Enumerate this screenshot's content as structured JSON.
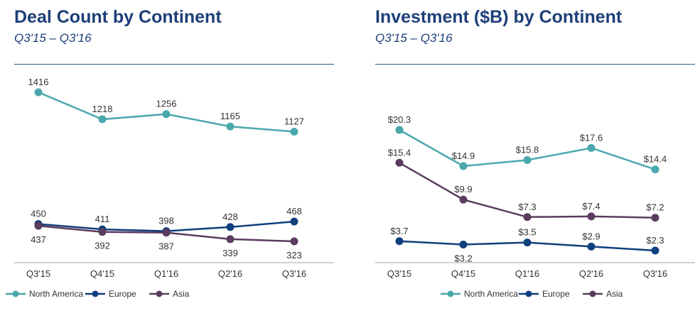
{
  "colors": {
    "north_america": "#4aa8ad",
    "europe": "#0f3f7c",
    "asia": "#5a3c5e",
    "title": "#1e3f78"
  },
  "chart_data": [
    {
      "type": "line",
      "title": "Deal Count by Continent",
      "subtitle": "Q3'15 – Q3'16",
      "categories": [
        "Q3'15",
        "Q4'15",
        "Q1'16",
        "Q2'16",
        "Q3'16"
      ],
      "legend_position": "bottom",
      "grid": false,
      "series": [
        {
          "name": "North America",
          "color": "#4aa8ad",
          "values": [
            1416,
            1218,
            1256,
            1165,
            1127
          ],
          "labels": [
            "1416",
            "1218",
            "1256",
            "1165",
            "1127"
          ],
          "label_pos": [
            "above",
            "above",
            "above",
            "above",
            "above"
          ]
        },
        {
          "name": "Europe",
          "color": "#0f3f7c",
          "values": [
            450,
            411,
            398,
            428,
            468
          ],
          "labels": [
            "450",
            "411",
            "398",
            "428",
            "468"
          ],
          "label_pos": [
            "above",
            "above",
            "above",
            "above",
            "above"
          ]
        },
        {
          "name": "Asia",
          "color": "#5a3c5e",
          "values": [
            437,
            392,
            387,
            339,
            323
          ],
          "labels": [
            "437",
            "392",
            "387",
            "339",
            "323"
          ],
          "label_pos": [
            "below",
            "below",
            "below",
            "below",
            "below"
          ]
        }
      ]
    },
    {
      "type": "line",
      "title": "Investment ($B) by Continent",
      "subtitle": "Q3'15 – Q3'16",
      "categories": [
        "Q3'15",
        "Q4'15",
        "Q1'16",
        "Q2'16",
        "Q3'16"
      ],
      "legend_position": "bottom",
      "grid": false,
      "series": [
        {
          "name": "North America",
          "color": "#4aa8ad",
          "values": [
            20.3,
            14.9,
            15.8,
            17.6,
            14.4
          ],
          "labels": [
            "$20.3",
            "$14.9",
            "$15.8",
            "$17.6",
            "$14.4"
          ],
          "label_pos": [
            "above",
            "above",
            "above",
            "above",
            "above"
          ]
        },
        {
          "name": "Europe",
          "color": "#0f3f7c",
          "values": [
            3.7,
            3.2,
            3.5,
            2.9,
            2.3
          ],
          "labels": [
            "$3.7",
            "$3.2",
            "$3.5",
            "$2.9",
            "$2.3"
          ],
          "label_pos": [
            "above",
            "below",
            "above",
            "above",
            "above"
          ]
        },
        {
          "name": "Asia",
          "color": "#5a3c5e",
          "values": [
            15.4,
            9.9,
            7.3,
            7.4,
            7.2
          ],
          "labels": [
            "$15.4",
            "$9.9",
            "$7.3",
            "$7.4",
            "$7.2"
          ],
          "label_pos": [
            "above",
            "above",
            "above",
            "above",
            "above"
          ]
        }
      ]
    }
  ]
}
